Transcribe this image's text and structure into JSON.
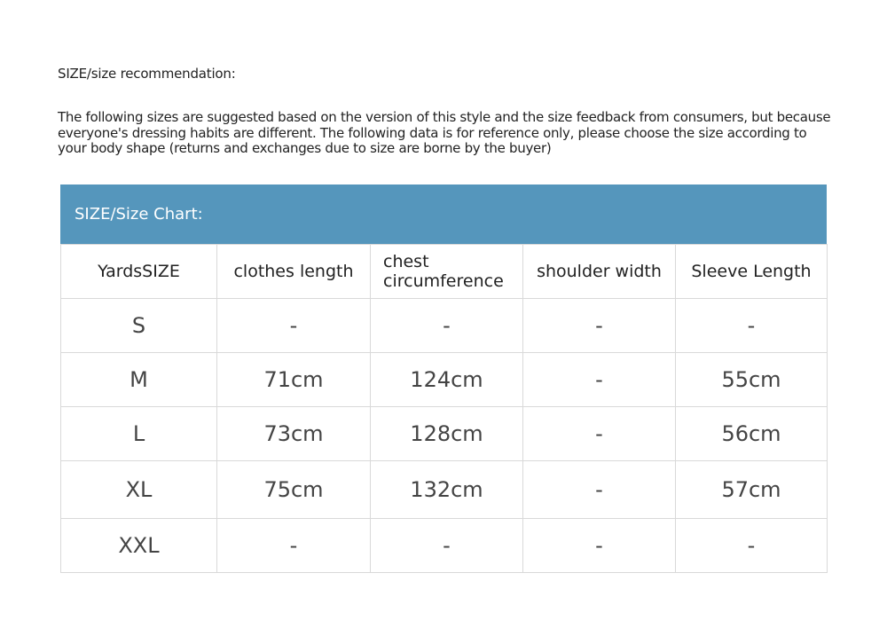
{
  "title": "SIZE/size recommendation:",
  "description": "The following sizes are suggested based on the version of this style and the size feedback from consumers, but because everyone's dressing habits are different. The following data is for reference only, please choose the size according to your body shape (returns and exchanges due to size are borne by the buyer)",
  "chart": {
    "header": "SIZE/Size Chart:",
    "header_color": "#5596bc",
    "columns": [
      "YardsSIZE",
      "clothes length",
      "chest circumference",
      "shoulder width",
      "Sleeve Length"
    ],
    "rows": [
      [
        "S",
        "-",
        "-",
        "-",
        "-"
      ],
      [
        "M",
        "71cm",
        "124cm",
        "-",
        "55cm"
      ],
      [
        "L",
        "73cm",
        "128cm",
        "-",
        "56cm"
      ],
      [
        "XL",
        "75cm",
        "132cm",
        "-",
        "57cm"
      ],
      [
        "XXL",
        "-",
        "-",
        "-",
        "-"
      ]
    ]
  }
}
